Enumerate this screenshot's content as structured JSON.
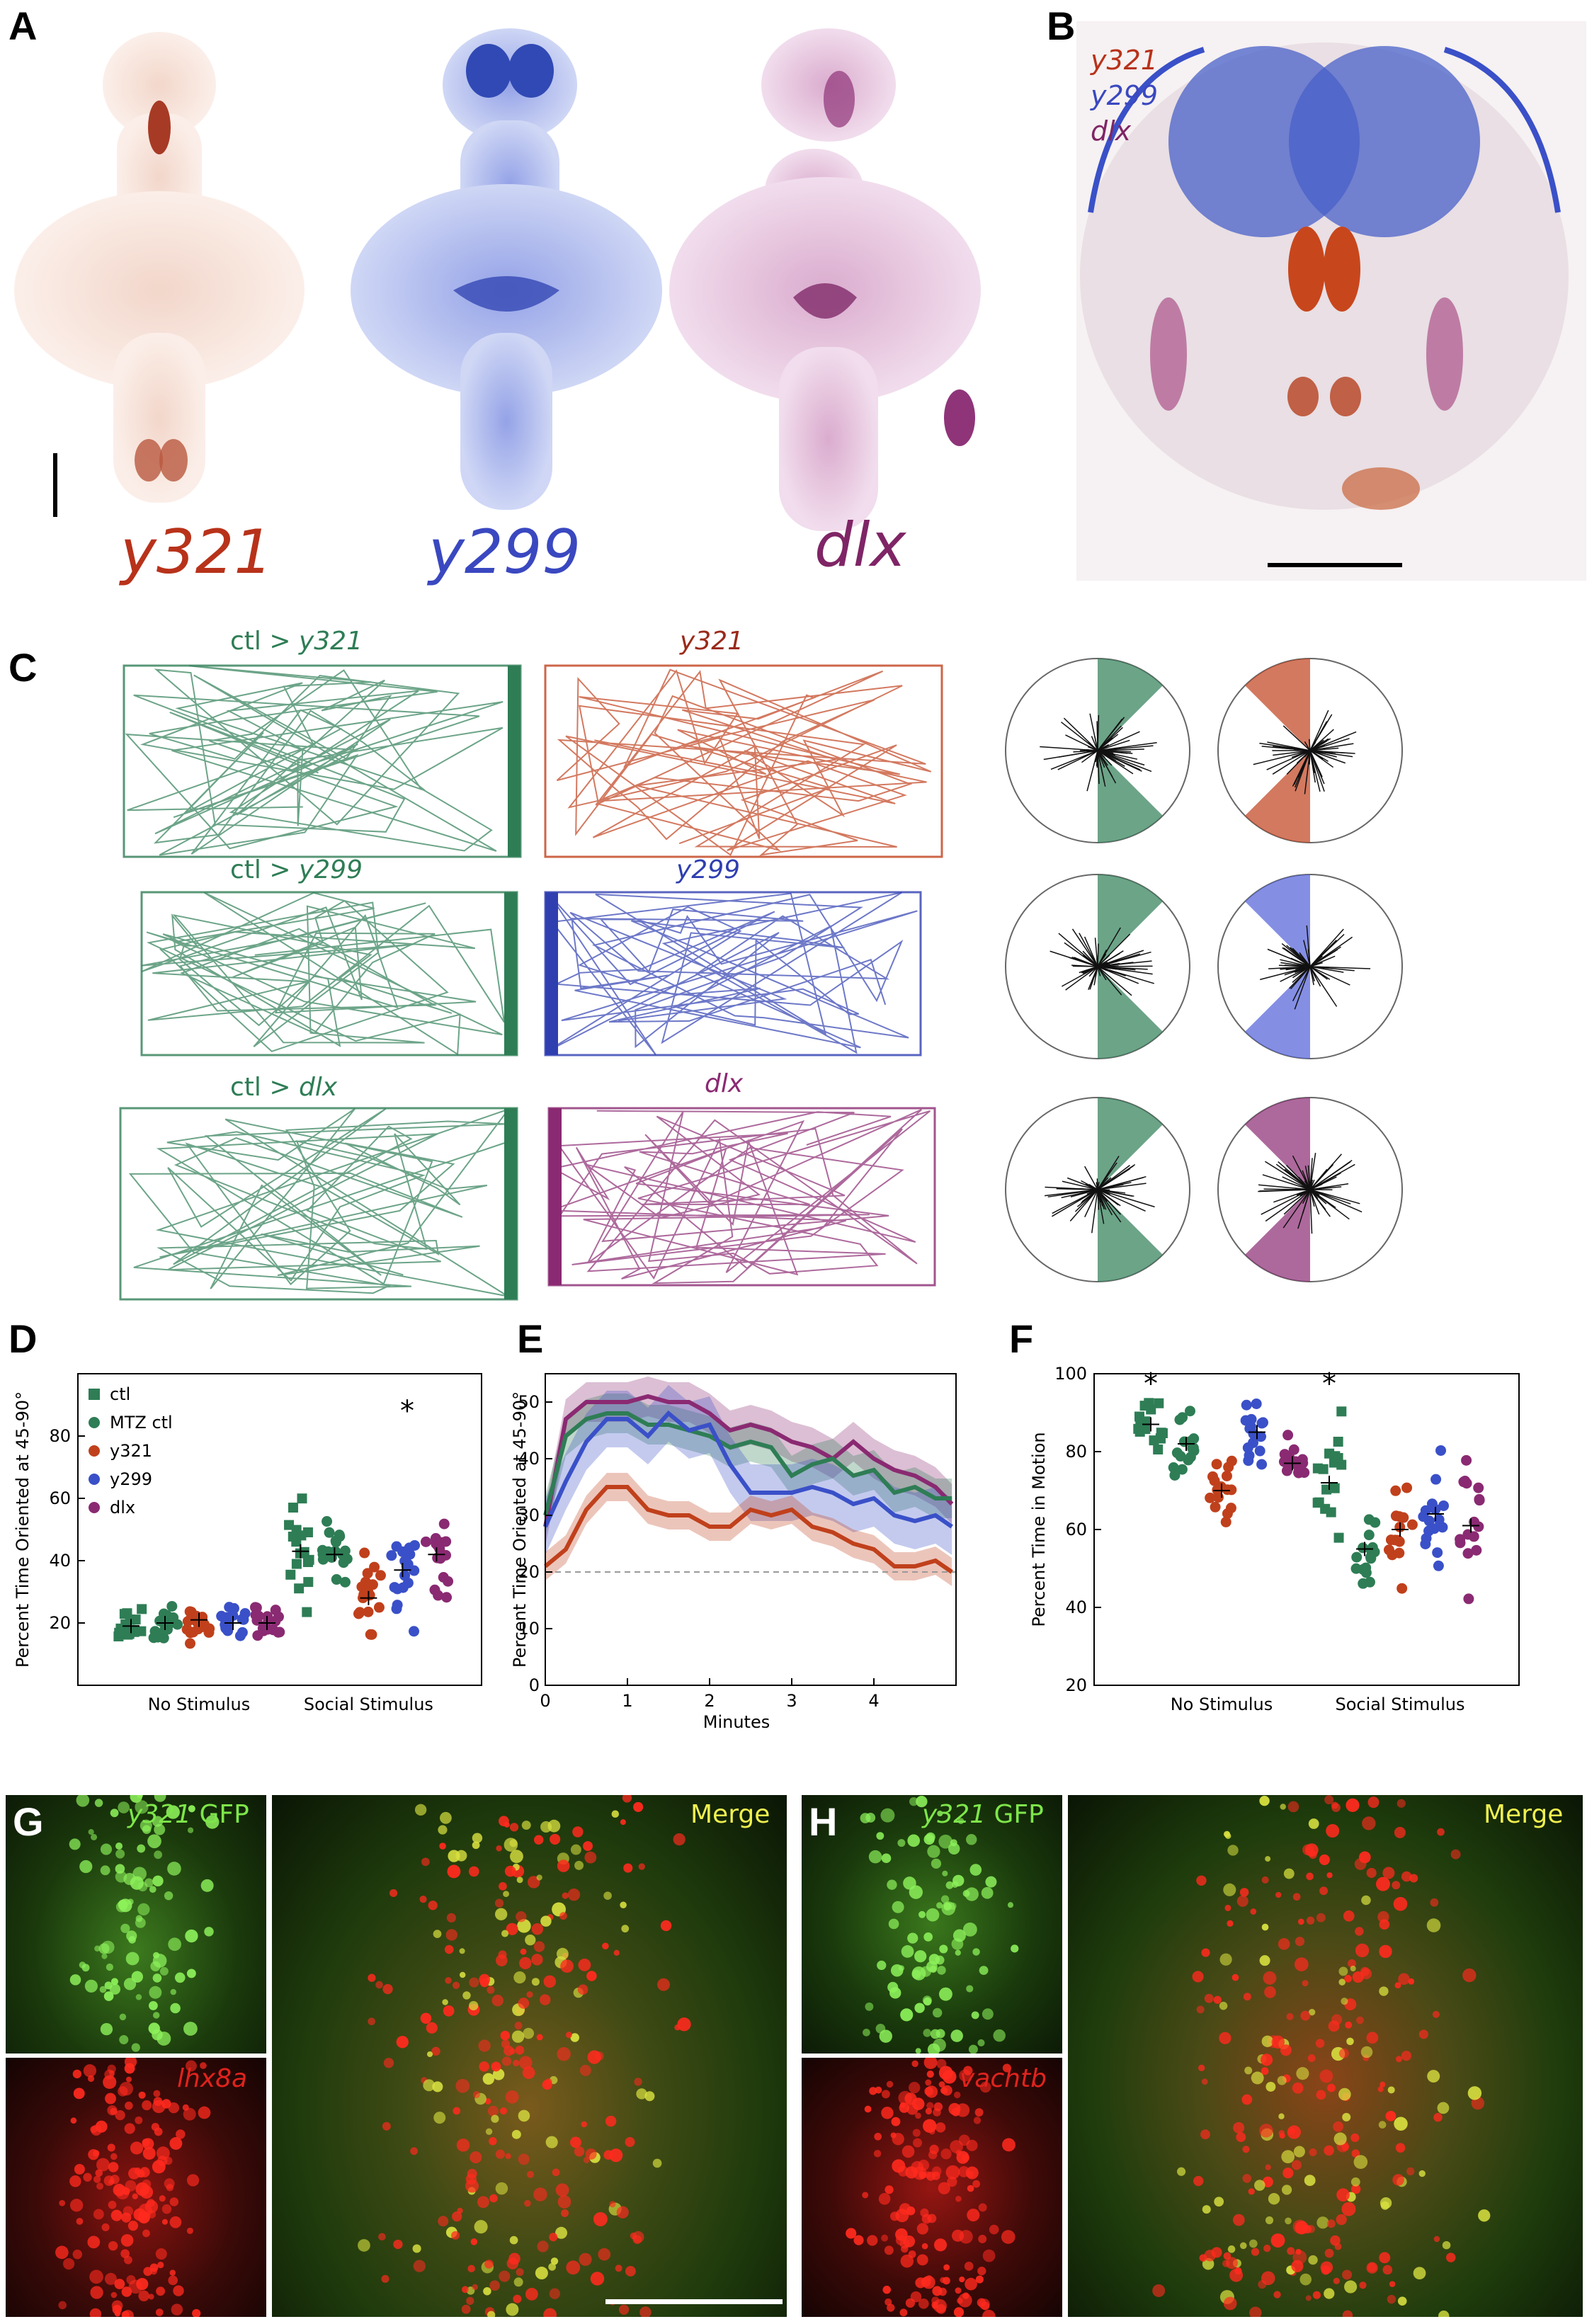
{
  "panels": {
    "A": "A",
    "B": "B",
    "C": "C",
    "D": "D",
    "E": "E",
    "F": "F",
    "G": "G",
    "H": "H"
  },
  "colors": {
    "y321": "#c0401c",
    "y299": "#3a50c8",
    "dlx": "#8a2a72",
    "ctl": "#2e7d55",
    "mtz_ctl": "#2e7d55",
    "gfp": "#7ee64a",
    "red": "#e0231d",
    "merge_text": "#f0f050"
  },
  "panel_a": {
    "labels": [
      "y321",
      "y299",
      "dlx"
    ]
  },
  "panel_b": {
    "labels": [
      "y321",
      "y299",
      "dlx"
    ]
  },
  "panel_c": {
    "rows": [
      {
        "ctl_prefix": "ctl > ",
        "ctl_line": "y321",
        "line": "y321",
        "color": "#c0401c"
      },
      {
        "ctl_prefix": "ctl > ",
        "ctl_line": "y299",
        "line": "y299",
        "color": "#2f3fb0"
      },
      {
        "ctl_prefix": "ctl > ",
        "ctl_line": "dlx",
        "line": "dlx",
        "color": "#8a2a72"
      }
    ]
  },
  "chart_data": [
    {
      "panel": "D",
      "type": "scatter",
      "ylabel": "Percent Time Oriented at 45-90°",
      "ylim": [
        0,
        100
      ],
      "yticks": [
        20,
        40,
        60,
        80
      ],
      "categories": [
        "No Stimulus",
        "Social Stimulus"
      ],
      "legend": [
        "ctl",
        "MTZ ctl",
        "y321",
        "y299",
        "dlx"
      ],
      "annotation": "*",
      "series": [
        {
          "name": "ctl",
          "values": [
            19,
            43
          ]
        },
        {
          "name": "MTZ ctl",
          "values": [
            20,
            42
          ]
        },
        {
          "name": "y321",
          "values": [
            21,
            28
          ]
        },
        {
          "name": "y299",
          "values": [
            20,
            37
          ]
        },
        {
          "name": "dlx",
          "values": [
            20,
            42
          ]
        }
      ]
    },
    {
      "panel": "E",
      "type": "line",
      "xlabel": "Minutes",
      "ylabel": "Percent Time Oriented at 45-90°",
      "xlim": [
        0,
        5
      ],
      "ylim": [
        0,
        55
      ],
      "xticks": [
        0,
        1,
        2,
        3,
        4
      ],
      "yticks": [
        0,
        10,
        20,
        30,
        40,
        50
      ],
      "reference_line": 20,
      "x": [
        0,
        0.25,
        0.5,
        0.75,
        1,
        1.25,
        1.5,
        1.75,
        2,
        2.25,
        2.5,
        2.75,
        3,
        3.25,
        3.5,
        3.75,
        4,
        4.25,
        4.5,
        4.75,
        4.95
      ],
      "series": [
        {
          "name": "dlx",
          "values": [
            28,
            47,
            50,
            50,
            50,
            51,
            50,
            50,
            48,
            45,
            46,
            45,
            43,
            42,
            40,
            43,
            40,
            38,
            37,
            35,
            32
          ]
        },
        {
          "name": "ctl",
          "values": [
            30,
            44,
            47,
            48,
            48,
            46,
            46,
            45,
            44,
            42,
            43,
            42,
            37,
            39,
            40,
            37,
            38,
            34,
            35,
            33,
            33
          ]
        },
        {
          "name": "y299",
          "values": [
            28,
            36,
            43,
            47,
            47,
            44,
            48,
            45,
            46,
            39,
            34,
            34,
            34,
            35,
            34,
            32,
            33,
            30,
            29,
            30,
            28
          ]
        },
        {
          "name": "y321",
          "values": [
            21,
            24,
            31,
            35,
            35,
            31,
            30,
            30,
            28,
            28,
            31,
            30,
            31,
            28,
            27,
            25,
            24,
            21,
            21,
            22,
            20
          ]
        }
      ]
    },
    {
      "panel": "F",
      "type": "scatter",
      "ylabel": "Percent Time in Motion",
      "ylim": [
        20,
        100
      ],
      "yticks": [
        20,
        40,
        60,
        80,
        100
      ],
      "categories": [
        "No Stimulus",
        "Social Stimulus"
      ],
      "annotations": [
        "*",
        "*"
      ],
      "series": [
        {
          "name": "ctl",
          "values": [
            87,
            72
          ]
        },
        {
          "name": "MTZ ctl",
          "values": [
            82,
            55
          ]
        },
        {
          "name": "y321",
          "values": [
            70,
            60
          ]
        },
        {
          "name": "y299",
          "values": [
            85,
            64
          ]
        },
        {
          "name": "dlx",
          "values": [
            77,
            61
          ]
        }
      ]
    }
  ],
  "panel_g": {
    "top_prefix": "y321",
    "top_suffix": " GFP",
    "bottom": "lhx8a",
    "merge": "Merge"
  },
  "panel_h": {
    "top_prefix": "y321",
    "top_suffix": " GFP",
    "bottom": "vachtb",
    "merge": "Merge"
  }
}
